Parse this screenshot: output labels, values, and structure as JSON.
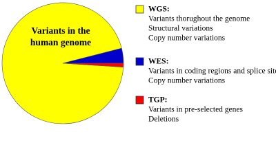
{
  "chart_data": {
    "type": "pie",
    "annotation": [
      "Variants in the",
      "human genome"
    ],
    "categories": [
      "WGS:",
      "WES:",
      "TGP:"
    ],
    "values": [
      95,
      4,
      1
    ],
    "colors": [
      "#ffff00",
      "#0000cc",
      "#ff0000"
    ],
    "descriptions": [
      [
        "Variants thorughout the genome",
        "Structural variations",
        "Copy number variations"
      ],
      [
        "Variants in coding regions and splice sites",
        "Copy number variations"
      ],
      [
        "Variants in pre-selected genes",
        "Deletions"
      ]
    ]
  }
}
